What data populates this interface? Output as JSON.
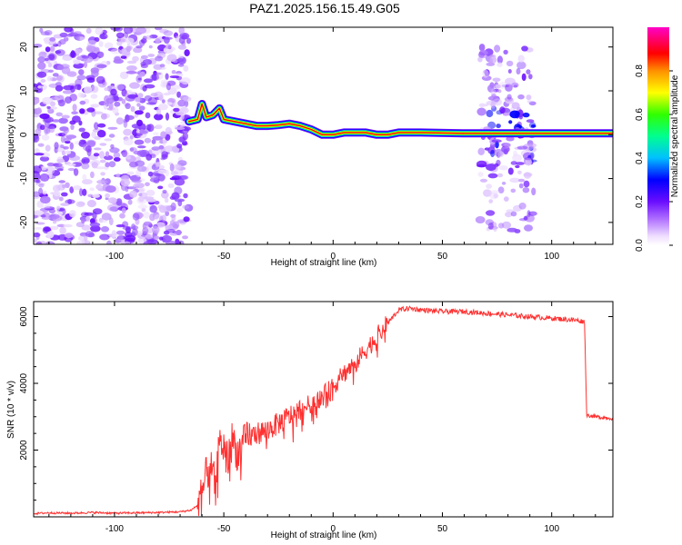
{
  "figure": {
    "title": "PAZ1.2025.156.15.49.G05"
  },
  "colors": {
    "snr_line": "#ff3030",
    "frame": "#000000",
    "background": "#ffffff"
  },
  "chart_data": [
    {
      "type": "heatmap",
      "title": "PAZ1.2025.156.15.49.G05",
      "xlabel": "Height of straight line (km)",
      "ylabel": "Frequency (Hz)",
      "xlim": [
        -137,
        128
      ],
      "ylim": [
        -25,
        24.5
      ],
      "x_ticks": [
        -100,
        -50,
        0,
        50,
        100
      ],
      "y_ticks": [
        -20,
        -10,
        0,
        10,
        20
      ],
      "colorbar": {
        "label": "Normalized spectral amplitude",
        "range": [
          0,
          1
        ],
        "ticks": [
          0.0,
          0.2,
          0.4,
          0.6,
          0.8
        ],
        "tick_labels": [
          "0.0",
          "0.2",
          "0.4",
          "0.6",
          "0.8"
        ],
        "colormap": "rainbow (white-violet-blue-cyan-green-yellow-orange-red-magenta)"
      },
      "description_of_content": "noise at low heights (-137 to -66 km), dominant tone line near 0 Hz from -66 km upward, drifting from ~7 Hz at -60 km to ~0 Hz beyond 20 km; broadband scatter between ~67 and ~92 km",
      "ridge": {
        "x": [
          -66,
          -62,
          -60,
          -58,
          -55,
          -52,
          -50,
          -45,
          -40,
          -35,
          -30,
          -25,
          -20,
          -15,
          -10,
          -5,
          0,
          5,
          10,
          15,
          20,
          25,
          30,
          40,
          60,
          67,
          80,
          92,
          110,
          128
        ],
        "y": [
          3,
          3.5,
          7,
          4,
          4.5,
          6,
          3.5,
          3,
          2.5,
          2,
          2,
          2.2,
          2.5,
          2,
          1.2,
          0,
          0,
          0.5,
          0.5,
          0.5,
          0,
          0,
          0.5,
          0.5,
          0.3,
          0.3,
          0.3,
          0.3,
          0.3,
          0.3
        ]
      },
      "noise_regions": [
        {
          "x_range": [
            -137,
            -66
          ],
          "f_range": [
            -25,
            24.5
          ]
        },
        {
          "x_range": [
            67,
            92
          ],
          "f_range": [
            -22,
            20
          ]
        }
      ]
    },
    {
      "type": "line",
      "xlabel": "Height of straight line (km)",
      "ylabel": "SNR (10 * v/v)",
      "xlim": [
        -137,
        128
      ],
      "ylim": [
        0,
        6450
      ],
      "x_ticks": [
        -100,
        -50,
        0,
        50,
        100
      ],
      "y_ticks": [
        2000,
        4000,
        6000
      ],
      "series": [
        {
          "color": "#ff3030",
          "x": [
            -137,
            -130,
            -120,
            -110,
            -100,
            -90,
            -80,
            -70,
            -65,
            -62,
            -60,
            -58,
            -56,
            -54,
            -52,
            -50,
            -48,
            -46,
            -44,
            -42,
            -40,
            -38,
            -35,
            -30,
            -25,
            -20,
            -15,
            -10,
            -5,
            0,
            5,
            10,
            15,
            20,
            25,
            30,
            35,
            40,
            50,
            60,
            70,
            80,
            90,
            100,
            110,
            115,
            116,
            120,
            128
          ],
          "y": [
            100,
            120,
            110,
            130,
            110,
            120,
            130,
            150,
            200,
            350,
            700,
            1300,
            1500,
            1000,
            2200,
            2100,
            1700,
            2400,
            1900,
            2100,
            2300,
            2400,
            2500,
            2600,
            2800,
            3000,
            3200,
            3400,
            3600,
            3900,
            4300,
            4600,
            5000,
            5400,
            5800,
            6200,
            6250,
            6200,
            6150,
            6150,
            6100,
            6050,
            6000,
            5950,
            5900,
            5850,
            3050,
            3000,
            2950
          ]
        }
      ]
    }
  ]
}
